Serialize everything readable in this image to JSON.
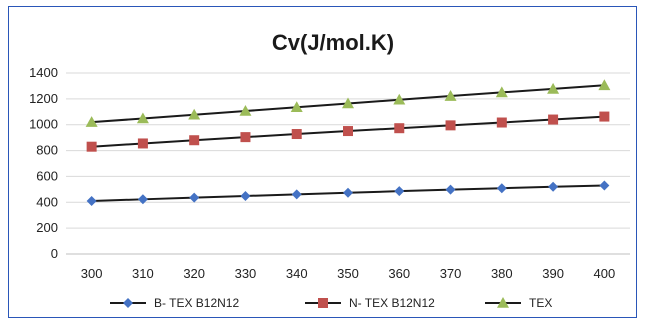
{
  "chart_data": {
    "type": "line",
    "title": "Cv(J/mol.K)",
    "xlabel": "",
    "ylabel": "",
    "x": [
      300,
      310,
      320,
      330,
      340,
      350,
      360,
      370,
      380,
      390,
      400
    ],
    "ylim": [
      0,
      1400
    ],
    "yticks": [
      0,
      200,
      400,
      600,
      800,
      1000,
      1200,
      1400
    ],
    "grid": true,
    "legend_position": "bottom",
    "series": [
      {
        "name": "B- TEX B12N12",
        "marker": "diamond",
        "color": "#4472c4",
        "values": [
          410,
          423,
          436,
          449,
          461,
          474,
          486,
          498,
          509,
          520,
          530
        ]
      },
      {
        "name": "N- TEX B12N12",
        "marker": "square",
        "color": "#c0504d",
        "values": [
          830,
          855,
          880,
          904,
          928,
          951,
          973,
          995,
          1017,
          1040,
          1063
        ]
      },
      {
        "name": "TEX",
        "marker": "triangle",
        "color": "#9bbb59",
        "values": [
          1020,
          1048,
          1077,
          1106,
          1135,
          1164,
          1193,
          1222,
          1250,
          1277,
          1305
        ]
      }
    ]
  }
}
